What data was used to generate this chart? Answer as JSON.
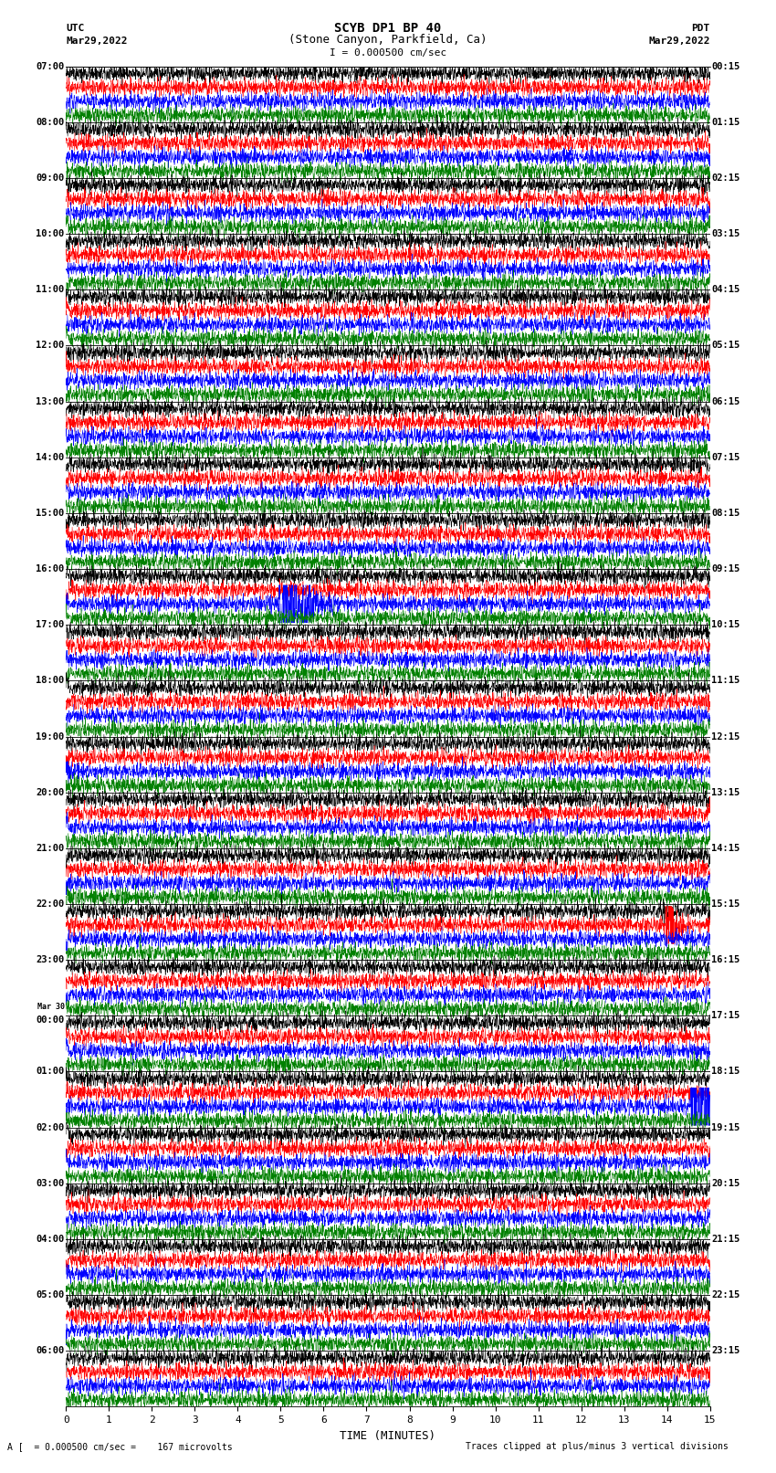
{
  "title_line1": "SCYB DP1 BP 40",
  "title_line2": "(Stone Canyon, Parkfield, Ca)",
  "scale_text": "I = 0.000500 cm/sec",
  "left_label": "UTC",
  "right_label": "PDT",
  "left_date": "Mar29,2022",
  "right_date": "Mar29,2022",
  "bottom_label": "TIME (MINUTES)",
  "footer_left": "A [  = 0.000500 cm/sec =    167 microvolts",
  "footer_right": "Traces clipped at plus/minus 3 vertical divisions",
  "num_rows": 24,
  "traces_per_row": 4,
  "row_colors": [
    "black",
    "red",
    "blue",
    "green"
  ],
  "x_min": 0,
  "x_max": 15,
  "x_ticks": [
    0,
    1,
    2,
    3,
    4,
    5,
    6,
    7,
    8,
    9,
    10,
    11,
    12,
    13,
    14,
    15
  ],
  "fig_width": 8.5,
  "fig_height": 16.13,
  "bg_color": "white",
  "left_time_labels": [
    "07:00",
    "08:00",
    "09:00",
    "10:00",
    "11:00",
    "12:00",
    "13:00",
    "14:00",
    "15:00",
    "16:00",
    "17:00",
    "18:00",
    "19:00",
    "20:00",
    "21:00",
    "22:00",
    "23:00",
    "Mar 30\n00:00",
    "01:00",
    "02:00",
    "03:00",
    "04:00",
    "05:00",
    "06:00"
  ],
  "right_time_labels": [
    "00:15",
    "01:15",
    "02:15",
    "03:15",
    "04:15",
    "05:15",
    "06:15",
    "07:15",
    "08:15",
    "09:15",
    "10:15",
    "11:15",
    "12:15",
    "13:15",
    "14:15",
    "15:15",
    "16:15",
    "17:15",
    "18:15",
    "19:15",
    "20:15",
    "21:15",
    "22:15",
    "23:15"
  ],
  "seed": 42
}
